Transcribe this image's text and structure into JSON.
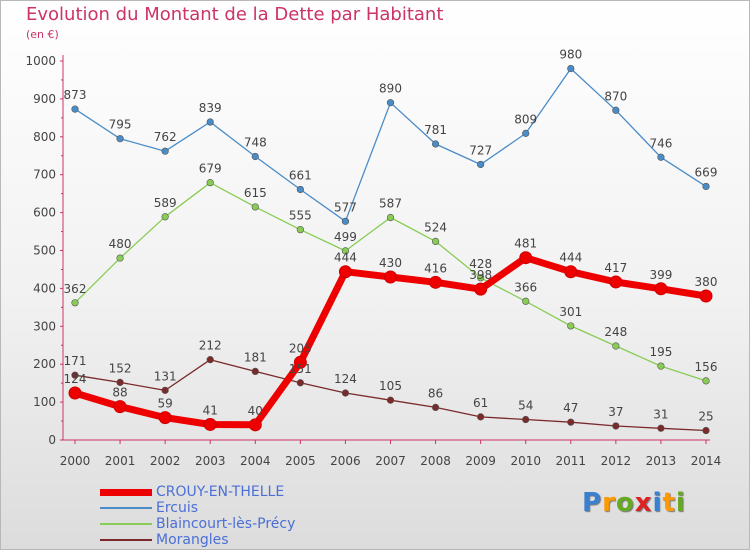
{
  "chart_data": {
    "type": "line",
    "title": "Evolution du Montant de la Dette par Habitant",
    "subtitle": "(en €)",
    "x": [
      "2000",
      "2001",
      "2002",
      "2003",
      "2004",
      "2005",
      "2006",
      "2007",
      "2008",
      "2009",
      "2010",
      "2011",
      "2012",
      "2013",
      "2014"
    ],
    "ylim": [
      0,
      1000
    ],
    "yticks": [
      "0",
      "100",
      "200",
      "300",
      "400",
      "500",
      "600",
      "700",
      "800",
      "900",
      "1000"
    ],
    "grid": false,
    "legend_position": "bottom-left",
    "series": [
      {
        "name": "CROUY-EN-THELLE",
        "color": "#ee0000",
        "values": [
          124,
          88,
          59,
          41,
          40,
          205,
          444,
          430,
          416,
          398,
          481,
          444,
          417,
          399,
          380
        ]
      },
      {
        "name": "Ercuis",
        "color": "#4a8cc8",
        "values": [
          873,
          795,
          762,
          839,
          748,
          661,
          577,
          890,
          781,
          727,
          809,
          980,
          870,
          746,
          669
        ]
      },
      {
        "name": "Blaincourt-lès-Précy",
        "color": "#88cc55",
        "values": [
          362,
          480,
          589,
          679,
          615,
          555,
          499,
          587,
          524,
          428,
          366,
          301,
          248,
          195,
          156
        ]
      },
      {
        "name": "Morangles",
        "color": "#7a2a2a",
        "values": [
          171,
          152,
          131,
          212,
          181,
          151,
          124,
          105,
          86,
          61,
          54,
          47,
          37,
          31,
          25
        ]
      }
    ]
  },
  "logo": {
    "letters": [
      "P",
      "r",
      "o",
      "x",
      "i",
      "t",
      "i"
    ],
    "colors": [
      "#3a7fd0",
      "#ff9900",
      "#66aa22",
      "#dd2222",
      "#3a7fd0",
      "#ff9900",
      "#66aa22"
    ]
  }
}
